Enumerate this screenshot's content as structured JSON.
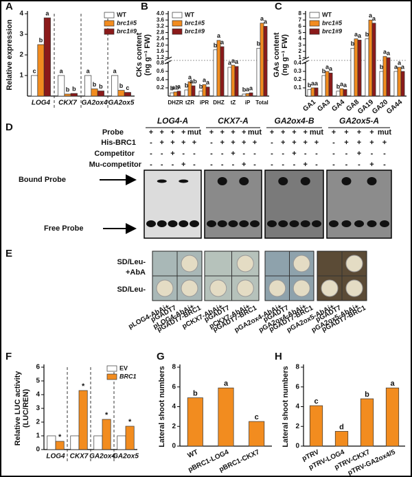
{
  "chart_data": [
    {
      "type": "bar",
      "panel": "A",
      "ylabel": [
        "Relative expression"
      ],
      "categories": [
        "LOG4",
        "CKX7",
        "GA2ox4",
        "GA2ox5"
      ],
      "series": [
        {
          "name": "WT",
          "color": "#ffffff",
          "values": [
            1,
            1,
            1,
            1
          ],
          "letters": [
            "c",
            "a",
            "a",
            "a"
          ]
        },
        {
          "name": "brc1#5",
          "color": "#f28c1f",
          "values": [
            2.5,
            0.1,
            0.35,
            0.28
          ],
          "letters": [
            "b",
            "b",
            "b",
            "b"
          ]
        },
        {
          "name": "brc1#9",
          "color": "#8b1a1a",
          "values": [
            3.8,
            0.13,
            0.25,
            0.18
          ],
          "letters": [
            "a",
            "b",
            "b",
            "c"
          ]
        }
      ],
      "ylim": [
        0,
        4
      ],
      "yticks": [
        1,
        2,
        3,
        4
      ],
      "legend": "upper right",
      "separators": true
    },
    {
      "type": "bar",
      "panel": "B",
      "ylabel": [
        "CKs content",
        "(ng g⁻¹ FW)"
      ],
      "categories": [
        "DHZR",
        "tZR",
        "iPR",
        "DHZ",
        "tZ",
        "iP",
        "Total"
      ],
      "series": [
        {
          "name": "WT",
          "color": "#ffffff",
          "values": [
            0.08,
            0.15,
            0.12,
            1.7,
            0.7,
            0.05,
            1.8
          ],
          "letters": [
            "b",
            "b",
            "b",
            "b",
            "a",
            "b",
            "b"
          ]
        },
        {
          "name": "brc1#5",
          "color": "#f28c1f",
          "values": [
            0.1,
            0.35,
            0.28,
            2.3,
            0.75,
            0.06,
            3.4
          ],
          "letters": [
            "ab",
            "a",
            "a",
            "a",
            "a",
            "a",
            "a"
          ]
        },
        {
          "name": "brc1#9",
          "color": "#8b1a1a",
          "values": [
            0.12,
            0.25,
            0.22,
            1.9,
            0.72,
            0.08,
            3.2
          ],
          "letters": [
            "a",
            "ab",
            "a",
            "a",
            "a",
            "a",
            "a"
          ]
        }
      ],
      "ylim": [
        0,
        4
      ],
      "ybreak": [
        0.8,
        1.2
      ],
      "yticks": [
        0.2,
        0.4,
        0.6,
        0.8,
        1.2,
        1.6,
        {
          "value": 2,
          "label": "2.0"
        },
        2.4,
        2.8,
        3.2,
        3.6,
        {
          "value": 4,
          "label": "4.0"
        }
      ],
      "legend": "upper left"
    },
    {
      "type": "bar",
      "panel": "C",
      "ylabel": [
        "GAs content",
        "(ng g⁻¹ FW)"
      ],
      "categories": [
        "GA1",
        "GA3",
        "GA4",
        "GA8",
        "GA19",
        "GA20",
        "GA44"
      ],
      "series": [
        {
          "name": "WT",
          "color": "#ffffff",
          "values": [
            0.08,
            0.25,
            0.06,
            2.5,
            4,
            0.3,
            0.3
          ],
          "letters": [
            "b",
            "b",
            "b",
            "b",
            "b",
            "b",
            "a"
          ]
        },
        {
          "name": "brc1#5",
          "color": "#f28c1f",
          "values": [
            0.1,
            0.3,
            0.09,
            4,
            7,
            1.2,
            0.35
          ],
          "letters": [
            "a",
            "a",
            "a",
            "a",
            "a",
            "a",
            "a"
          ]
        },
        {
          "name": "brc1#9",
          "color": "#8b1a1a",
          "values": [
            0.1,
            0.28,
            0.08,
            3.8,
            6.5,
            1,
            0.3
          ],
          "letters": [
            "a",
            "a",
            "a",
            "a",
            "a",
            "a",
            "a"
          ]
        }
      ],
      "ylim": [
        0,
        8
      ],
      "ybreak": [
        0.4,
        1
      ],
      "yticks": [
        0.1,
        0.2,
        0.3,
        0.4,
        1,
        2,
        3,
        4,
        5,
        6,
        7,
        8
      ],
      "legend": "upper left"
    },
    {
      "type": "bar",
      "panel": "F",
      "ylabel": [
        "Relative LUC activity",
        "(LUC/REN)"
      ],
      "categories": [
        "LOG4",
        "CKX7",
        "GA2ox4",
        "GA2ox5"
      ],
      "series": [
        {
          "name": "EV",
          "color": "#ffffff",
          "values": [
            1,
            1,
            1,
            1
          ]
        },
        {
          "name": "BRC1",
          "color": "#f28c1f",
          "values": [
            0.6,
            4.3,
            2.2,
            1.7
          ],
          "letters": [
            "*",
            "*",
            "*",
            "*"
          ]
        }
      ],
      "ylim": [
        0,
        6
      ],
      "yticks": [
        0,
        1,
        2,
        3,
        4,
        5,
        6
      ],
      "legend": "upper right",
      "separators": true
    },
    {
      "type": "bar",
      "panel": "G",
      "ylabel": [
        "Lateral shoot numbers"
      ],
      "categories": [
        "WT",
        "pBRC1-LOG4",
        "pBRC1-CKX7"
      ],
      "values": [
        4.9,
        5.9,
        2.5
      ],
      "letters": [
        "b",
        "a",
        "c"
      ],
      "color": "#f28c1f",
      "ylim": [
        0,
        8
      ],
      "yticks": [
        0,
        2,
        4,
        6,
        8
      ]
    },
    {
      "type": "bar",
      "panel": "H",
      "ylabel": [
        "Lateral shoot numbers"
      ],
      "categories": [
        "pTRV",
        "pTRV-LOG4",
        "pTRV-CKX7",
        "pTRV-GA2ox4/5"
      ],
      "values": [
        4.1,
        1.5,
        4.8,
        5.9
      ],
      "letters": [
        "c",
        "d",
        "b",
        "a"
      ],
      "color": "#f28c1f",
      "ylim": [
        0,
        8
      ],
      "yticks": [
        0,
        2,
        4,
        6,
        8
      ]
    }
  ],
  "panel_d": {
    "label": "D",
    "rows": [
      "Probe",
      "His-BRC1",
      "Competitor",
      "Mu-competitor"
    ],
    "bound": "Bound Probe",
    "free": "Free Probe",
    "gels": [
      {
        "title": "LOG4-A",
        "signs": [
          [
            "+",
            "+",
            "+",
            "+",
            "mut"
          ],
          [
            "-",
            "+",
            "+",
            "+",
            "+"
          ],
          [
            "-",
            "-",
            "+",
            "-",
            "-"
          ],
          [
            "-",
            "-",
            "-",
            "+",
            "-"
          ]
        ]
      },
      {
        "title": "CKX7-A",
        "signs": [
          [
            "+",
            "+",
            "+",
            "+",
            "mut"
          ],
          [
            "-",
            "+",
            "+",
            "+",
            "+"
          ],
          [
            "-",
            "-",
            "+",
            "-",
            "-"
          ],
          [
            "-",
            "-",
            "-",
            "+",
            "-"
          ]
        ]
      },
      {
        "title": "GA2ox4-B",
        "signs": [
          [
            "+",
            "+",
            "+",
            "+",
            "mut"
          ],
          [
            "-",
            "+",
            "+",
            "+",
            "+"
          ],
          [
            "-",
            "-",
            "+",
            "-",
            "-"
          ],
          [
            "-",
            "-",
            "-",
            "+",
            "-"
          ]
        ]
      },
      {
        "title": "GA2ox5-A",
        "signs": [
          [
            "+",
            "+",
            "+",
            "+",
            "mut"
          ],
          [
            "-",
            "+",
            "+",
            "+",
            "+"
          ],
          [
            "-",
            "-",
            "+",
            "-",
            "-"
          ],
          [
            "-",
            "-",
            "-",
            "+",
            "-"
          ]
        ]
      }
    ]
  },
  "panel_e": {
    "label": "E",
    "rows": [
      [
        "SD/Leu-",
        "+AbA"
      ],
      [
        "SD/Leu-"
      ]
    ],
    "columns": [
      [
        "pLOG4-AbAi+",
        "pGADT7"
      ],
      [
        "pLOG4-AbAi+",
        "pGADT7-BRC1"
      ],
      [
        "pCKX7-AbAi+",
        "pGADT7"
      ],
      [
        "pCKX7-AbAi+",
        "pGADT7-BRC1"
      ],
      [
        "pGA2ox4-AbAi+",
        "pGADT7"
      ],
      [
        "pGA2ox4-AbAi+",
        "pGADT7-BRC1"
      ],
      [
        "pGA2ox5-AbAi+",
        "pGADT7"
      ],
      [
        "pGA2ox5-AbAi+",
        "pGADT7-BRC1"
      ]
    ]
  }
}
